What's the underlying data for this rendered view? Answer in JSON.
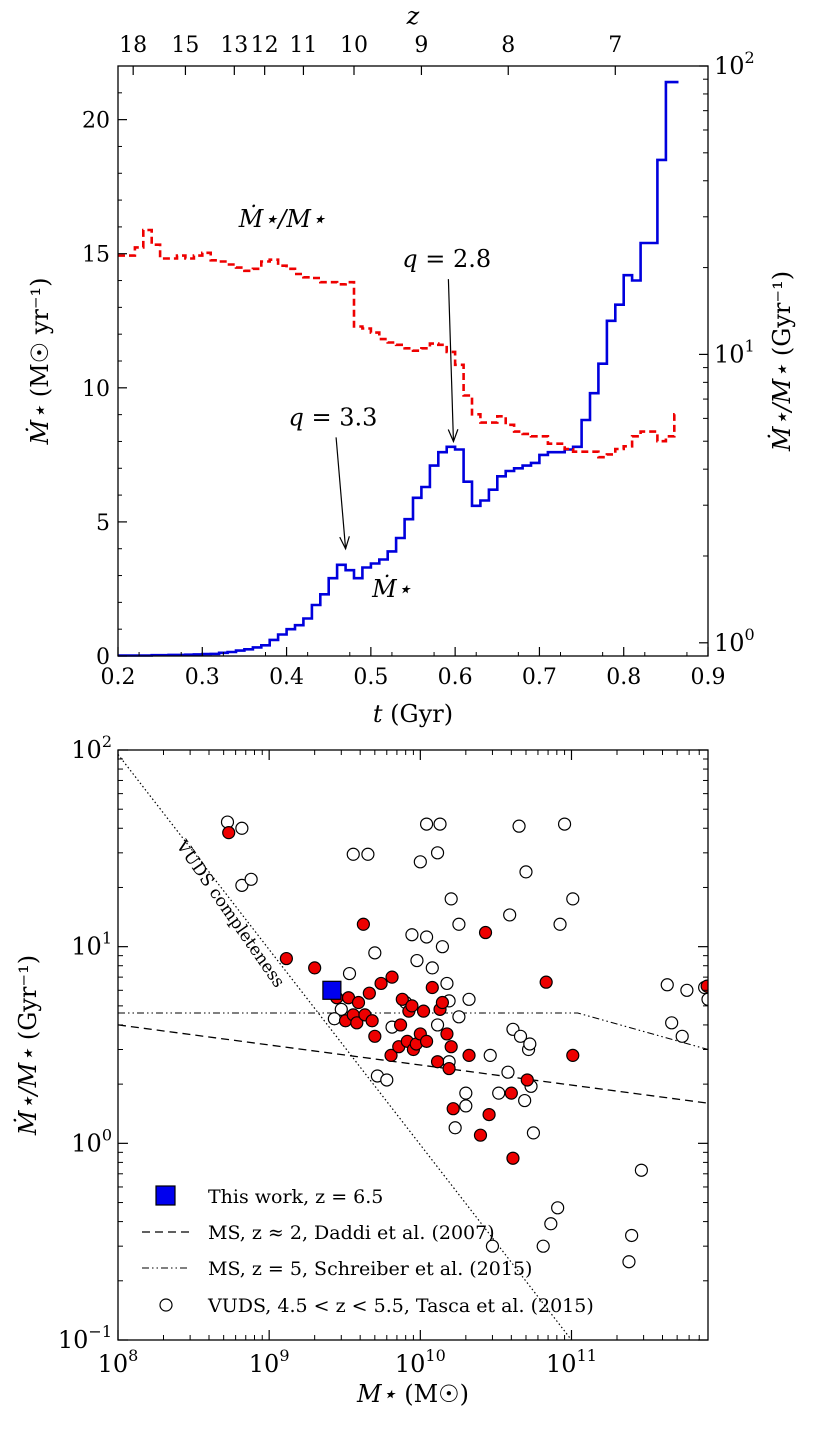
{
  "chart_data": [
    {
      "type": "line",
      "panel": "top",
      "xlabel_sym": "t",
      "xlabel_unit": "(Gyr)",
      "ylabel_sym": "Ṁ⋆",
      "ylabel_unit": "(M☉ yr⁻¹)",
      "ylabel_right_sym": "Ṁ⋆/M⋆",
      "ylabel_right_unit": "(Gyr⁻¹)",
      "top_axis_label": "z",
      "xlim": [
        0.2,
        0.9
      ],
      "ylim": [
        0,
        22
      ],
      "y2lim_log": [
        0.9,
        100
      ],
      "x_ticks": [
        0.2,
        0.3,
        0.4,
        0.5,
        0.6,
        0.7,
        0.8,
        0.9
      ],
      "x_tick_labels": [
        "0.2",
        "0.3",
        "0.4",
        "0.5",
        "0.6",
        "0.7",
        "0.8",
        "0.9"
      ],
      "y_ticks": [
        0,
        5,
        10,
        15,
        20
      ],
      "y_tick_labels": [
        "0",
        "5",
        "10",
        "15",
        "20"
      ],
      "y2_ticks": [
        {
          "value": 1,
          "base": "10",
          "exp": "0"
        },
        {
          "value": 10,
          "base": "10",
          "exp": "1"
        },
        {
          "value": 100,
          "base": "10",
          "exp": "2"
        }
      ],
      "top_ticks": [
        {
          "label": "18",
          "t": 0.218
        },
        {
          "label": "15",
          "t": 0.28
        },
        {
          "label": "13",
          "t": 0.338
        },
        {
          "label": "12",
          "t": 0.374
        },
        {
          "label": "11",
          "t": 0.42
        },
        {
          "label": "10",
          "t": 0.48
        },
        {
          "label": "9",
          "t": 0.56
        },
        {
          "label": "8",
          "t": 0.663
        },
        {
          "label": "7",
          "t": 0.79
        }
      ],
      "series": [
        {
          "name": "Ṁ⋆",
          "color": "#0000dd",
          "style": "solid-step",
          "x": [
            0.2,
            0.21,
            0.22,
            0.23,
            0.24,
            0.25,
            0.26,
            0.27,
            0.28,
            0.29,
            0.3,
            0.31,
            0.32,
            0.33,
            0.34,
            0.35,
            0.36,
            0.37,
            0.38,
            0.39,
            0.4,
            0.41,
            0.42,
            0.43,
            0.44,
            0.45,
            0.46,
            0.47,
            0.48,
            0.49,
            0.5,
            0.51,
            0.52,
            0.53,
            0.54,
            0.55,
            0.56,
            0.57,
            0.58,
            0.59,
            0.6,
            0.61,
            0.62,
            0.63,
            0.64,
            0.65,
            0.66,
            0.67,
            0.68,
            0.69,
            0.7,
            0.71,
            0.72,
            0.73,
            0.74,
            0.75,
            0.76,
            0.77,
            0.78,
            0.79,
            0.8,
            0.81,
            0.82,
            0.83,
            0.84,
            0.85,
            0.86,
            0.865
          ],
          "values": [
            0.02,
            0.02,
            0.02,
            0.02,
            0.03,
            0.03,
            0.04,
            0.04,
            0.05,
            0.06,
            0.07,
            0.08,
            0.12,
            0.15,
            0.2,
            0.25,
            0.32,
            0.4,
            0.6,
            0.8,
            1.0,
            1.15,
            1.4,
            1.9,
            2.3,
            2.9,
            3.4,
            3.2,
            2.9,
            3.3,
            3.45,
            3.6,
            3.9,
            4.4,
            5.1,
            5.9,
            6.3,
            7.1,
            7.6,
            7.8,
            7.7,
            6.5,
            5.6,
            5.8,
            6.2,
            6.7,
            6.9,
            7.0,
            7.1,
            7.2,
            7.5,
            7.6,
            7.6,
            7.7,
            7.8,
            8.8,
            9.8,
            10.9,
            12.5,
            13.1,
            14.2,
            14.0,
            15.4,
            15.4,
            18.5,
            21.4,
            21.4,
            21.4
          ]
        },
        {
          "name": "Ṁ⋆/M⋆",
          "color": "#ee0000",
          "style": "dashed-step",
          "axis": "right",
          "x": [
            0.2,
            0.22,
            0.23,
            0.24,
            0.25,
            0.26,
            0.27,
            0.28,
            0.29,
            0.3,
            0.31,
            0.32,
            0.33,
            0.34,
            0.35,
            0.36,
            0.37,
            0.38,
            0.39,
            0.4,
            0.41,
            0.42,
            0.43,
            0.44,
            0.45,
            0.46,
            0.47,
            0.48,
            0.49,
            0.5,
            0.51,
            0.52,
            0.53,
            0.54,
            0.55,
            0.56,
            0.57,
            0.58,
            0.59,
            0.6,
            0.61,
            0.62,
            0.63,
            0.64,
            0.65,
            0.66,
            0.67,
            0.68,
            0.69,
            0.7,
            0.71,
            0.72,
            0.73,
            0.74,
            0.75,
            0.76,
            0.77,
            0.78,
            0.79,
            0.8,
            0.81,
            0.82,
            0.83,
            0.84,
            0.85,
            0.86,
            0.865
          ],
          "values": [
            22,
            23.5,
            27,
            24,
            21.5,
            21.5,
            22,
            21.5,
            22,
            22.5,
            21.2,
            21,
            20.5,
            20,
            19.5,
            19.8,
            21,
            21.3,
            20.3,
            19.8,
            19,
            18.5,
            18.4,
            17.8,
            17.8,
            17.5,
            17.8,
            12.5,
            12.3,
            11.9,
            11.3,
            11.0,
            10.8,
            10.5,
            10.3,
            10.5,
            10.9,
            10.8,
            10.2,
            9.2,
            7.2,
            6.2,
            5.8,
            5.8,
            6.1,
            5.7,
            5.4,
            5.3,
            5.2,
            5.2,
            4.9,
            4.9,
            4.7,
            4.6,
            4.6,
            4.6,
            4.4,
            4.5,
            4.7,
            4.8,
            5.2,
            5.4,
            5.4,
            5.0,
            5.2,
            6.2,
            6.2
          ]
        }
      ],
      "annotations": [
        {
          "var": "q",
          "value": "3.3",
          "text_t": 0.455,
          "text_y": 8.6,
          "arrow_t": 0.47,
          "arrow_y": 4.0
        },
        {
          "var": "q",
          "value": "2.8",
          "text_t": 0.59,
          "text_y": 14.5,
          "arrow_t": 0.598,
          "arrow_y": 8.0
        }
      ],
      "series_labels": [
        {
          "text": "Ṁ⋆/M⋆",
          "t": 0.395,
          "y": 16.0
        },
        {
          "text": "Ṁ⋆",
          "t": 0.525,
          "y": 2.2
        }
      ]
    },
    {
      "type": "scatter",
      "panel": "bottom",
      "xlabel_sym": "M⋆",
      "xlabel_unit": "(M☉)",
      "ylabel_sym": "Ṁ⋆/M⋆",
      "ylabel_unit": "(Gyr⁻¹)",
      "xscale": "log",
      "yscale": "log",
      "xlim": [
        100000000.0,
        800000000000.0
      ],
      "ylim": [
        0.1,
        100
      ],
      "x_ticks": [
        {
          "value": 100000000.0,
          "base": "10",
          "exp": "8"
        },
        {
          "value": 1000000000.0,
          "base": "10",
          "exp": "9"
        },
        {
          "value": 10000000000.0,
          "base": "10",
          "exp": "10"
        },
        {
          "value": 100000000000.0,
          "base": "10",
          "exp": "11"
        }
      ],
      "y_ticks": [
        {
          "value": 0.1,
          "base": "10",
          "exp": "−1"
        },
        {
          "value": 1,
          "base": "10",
          "exp": "0"
        },
        {
          "value": 10,
          "base": "10",
          "exp": "1"
        },
        {
          "value": 100,
          "base": "10",
          "exp": "2"
        }
      ],
      "this_work": {
        "mass": 2600000000.0,
        "ssfr": 6.0,
        "color": "#0000ee"
      },
      "vuds_red": [
        [
          540000000.0,
          38
        ],
        [
          1300000000.0,
          8.7
        ],
        [
          2000000000.0,
          7.8
        ],
        [
          2800000000.0,
          5.5
        ],
        [
          3200000000.0,
          4.2
        ],
        [
          3350000000.0,
          5.5
        ],
        [
          3600000000.0,
          4.5
        ],
        [
          3800000000.0,
          4.1
        ],
        [
          3900000000.0,
          5.2
        ],
        [
          4200000000.0,
          13
        ],
        [
          4300000000.0,
          4.5
        ],
        [
          4600000000.0,
          5.8
        ],
        [
          4800000000.0,
          4.2
        ],
        [
          5000000000.0,
          3.5
        ],
        [
          5500000000.0,
          6.5
        ],
        [
          6500000000.0,
          7.0
        ],
        [
          6400000000.0,
          2.8
        ],
        [
          7200000000.0,
          3.1
        ],
        [
          7400000000.0,
          4.0
        ],
        [
          7600000000.0,
          5.4
        ],
        [
          8200000000.0,
          3.3
        ],
        [
          8400000000.0,
          4.7
        ],
        [
          8800000000.0,
          5.0
        ],
        [
          9000000000.0,
          3.0
        ],
        [
          9400000000.0,
          3.2
        ],
        [
          10000000000.0,
          3.6
        ],
        [
          10500000000.0,
          4.7
        ],
        [
          11000000000.0,
          3.3
        ],
        [
          12000000000.0,
          6.2
        ],
        [
          13000000000.0,
          2.6
        ],
        [
          13500000000.0,
          4.8
        ],
        [
          14000000000.0,
          5.2
        ],
        [
          15000000000.0,
          3.6
        ],
        [
          15500000000.0,
          2.4
        ],
        [
          16000000000.0,
          3.1
        ],
        [
          16500000000.0,
          1.5
        ],
        [
          21000000000.0,
          2.8
        ],
        [
          27000000000.0,
          11.8
        ],
        [
          28500000000.0,
          1.4
        ],
        [
          25000000000.0,
          1.1
        ],
        [
          40000000000.0,
          1.8
        ],
        [
          41000000000.0,
          0.84
        ],
        [
          51000000000.0,
          2.1
        ],
        [
          68000000000.0,
          6.6
        ],
        [
          102000000000.0,
          2.8
        ],
        [
          790000000000.0,
          6.3
        ]
      ],
      "vuds_open": [
        [
          530000000.0,
          43
        ],
        [
          660000000.0,
          40
        ],
        [
          660000000.0,
          20.5
        ],
        [
          760000000.0,
          22
        ],
        [
          3600000000.0,
          29.5
        ],
        [
          4500000000.0,
          29.5
        ],
        [
          3400000000.0,
          7.3
        ],
        [
          3000000000.0,
          4.8
        ],
        [
          2700000000.0,
          4.3
        ],
        [
          5000000000.0,
          9.3
        ],
        [
          5200000000.0,
          2.2
        ],
        [
          6000000000.0,
          2.1
        ],
        [
          6500000000.0,
          3.9
        ],
        [
          8000000000.0,
          5.2
        ],
        [
          8800000000.0,
          11.5
        ],
        [
          9500000000.0,
          8.5
        ],
        [
          10000000000.0,
          27
        ],
        [
          11000000000.0,
          42
        ],
        [
          11000000000.0,
          11.2
        ],
        [
          12000000000.0,
          7.8
        ],
        [
          13000000000.0,
          30
        ],
        [
          13500000000.0,
          42
        ],
        [
          14000000000.0,
          10
        ],
        [
          15000000000.0,
          6.5
        ],
        [
          15500000000.0,
          5.3
        ],
        [
          16000000000.0,
          17.5
        ],
        [
          18000000000.0,
          13
        ],
        [
          18000000000.0,
          4.4
        ],
        [
          17000000000.0,
          1.2
        ],
        [
          15500000000.0,
          2.6
        ],
        [
          13000000000.0,
          4.0
        ],
        [
          20000000000.0,
          1.55
        ],
        [
          21000000000.0,
          5.4
        ],
        [
          20000000000.0,
          1.8
        ],
        [
          29000000000.0,
          2.8
        ],
        [
          30000000000.0,
          0.3
        ],
        [
          33000000000.0,
          1.8
        ],
        [
          38000000000.0,
          2.3
        ],
        [
          39000000000.0,
          14.5
        ],
        [
          41000000000.0,
          3.8
        ],
        [
          45000000000.0,
          41
        ],
        [
          46000000000.0,
          3.5
        ],
        [
          49000000000.0,
          1.65
        ],
        [
          50000000000.0,
          24
        ],
        [
          52000000000.0,
          3.0
        ],
        [
          53000000000.0,
          3.2
        ],
        [
          54000000000.0,
          1.95
        ],
        [
          56000000000.0,
          1.13
        ],
        [
          65000000000.0,
          0.3
        ],
        [
          73000000000.0,
          0.39
        ],
        [
          81000000000.0,
          0.47
        ],
        [
          84000000000.0,
          13
        ],
        [
          90000000000.0,
          42
        ],
        [
          102000000000.0,
          17.5
        ],
        [
          240000000000.0,
          0.25
        ],
        [
          250000000000.0,
          0.34
        ],
        [
          290000000000.0,
          0.73
        ],
        [
          430000000000.0,
          6.4
        ],
        [
          460000000000.0,
          4.1
        ],
        [
          540000000000.0,
          3.5
        ],
        [
          580000000000.0,
          6.0
        ],
        [
          760000000000.0,
          6.2
        ],
        [
          800000000000.0,
          5.4
        ]
      ],
      "lines": {
        "daddi": {
          "x": [
            100000000.0,
            800000000000.0
          ],
          "y": [
            4.0,
            1.6
          ]
        },
        "schreiber": {
          "x": [
            100000000.0,
            110000000000.0,
            800000000000.0
          ],
          "y": [
            4.6,
            4.6,
            3.0
          ]
        },
        "vuds_completeness": {
          "x": [
            100000000.0,
            100000000000.0
          ],
          "y": [
            95,
            0.1
          ]
        }
      },
      "completeness_label": "VUDS completeness",
      "legend": [
        {
          "marker": "blue-square",
          "text": "This work, z = 6.5"
        },
        {
          "marker": "dashed",
          "text": "MS, z ≈ 2,  Daddi et al. (2007)"
        },
        {
          "marker": "dashdot",
          "text": "MS, z = 5,  Schreiber et al. (2015)"
        },
        {
          "marker": "open-circle",
          "text": "VUDS, 4.5 < z < 5.5,  Tasca et al. (2015)"
        }
      ]
    }
  ]
}
